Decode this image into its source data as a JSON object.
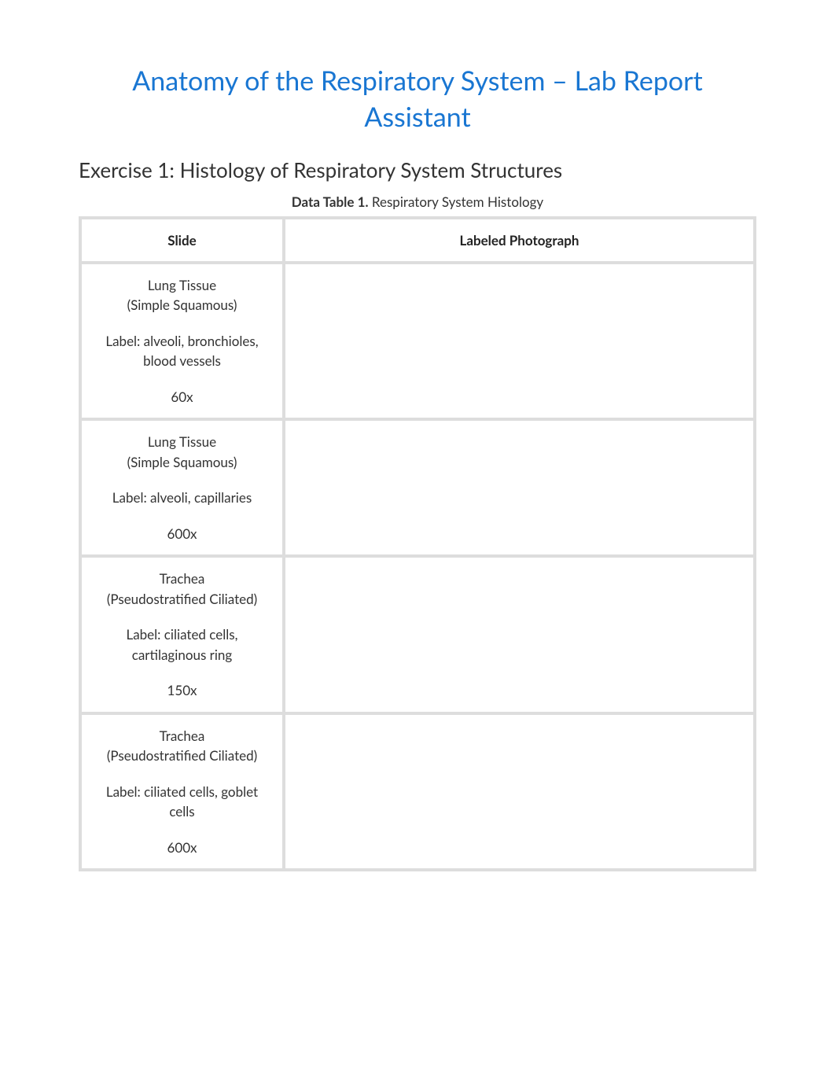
{
  "title": "Anatomy of the Respiratory System – Lab Report Assistant",
  "exercise_heading": "Exercise 1: Histology of Respiratory System Structures",
  "table_caption_bold": "Data Table 1.",
  "table_caption_rest": " Respiratory System Histology",
  "columns": {
    "slide": "Slide",
    "photo": "Labeled Photograph"
  },
  "rows": [
    {
      "name": "Lung Tissue",
      "type": "(Simple Squamous)",
      "label": "Label: alveoli, bronchioles, blood vessels",
      "magnification": "60x",
      "photo": ""
    },
    {
      "name": "Lung Tissue",
      "type": "(Simple Squamous)",
      "label": "Label: alveoli, capillaries",
      "magnification": "600x",
      "photo": ""
    },
    {
      "name": "Trachea",
      "type": "(Pseudostratified Ciliated)",
      "label": "Label: ciliated cells, cartilaginous ring",
      "magnification": "150x",
      "photo": ""
    },
    {
      "name": "Trachea",
      "type": "(Pseudostratified Ciliated)",
      "label": "Label: ciliated cells, goblet cells",
      "magnification": "600x",
      "photo": ""
    }
  ],
  "styling": {
    "title_color": "#1976d2",
    "title_fontsize": 34,
    "heading_color": "#333333",
    "heading_fontsize": 26,
    "body_text_color": "#333333",
    "body_fontsize": 17,
    "background_color": "#ffffff",
    "table_gap_color": "#dddddd",
    "cell_background": "#ffffff",
    "col_slide_width_pct": 30,
    "col_photo_width_pct": 70
  }
}
